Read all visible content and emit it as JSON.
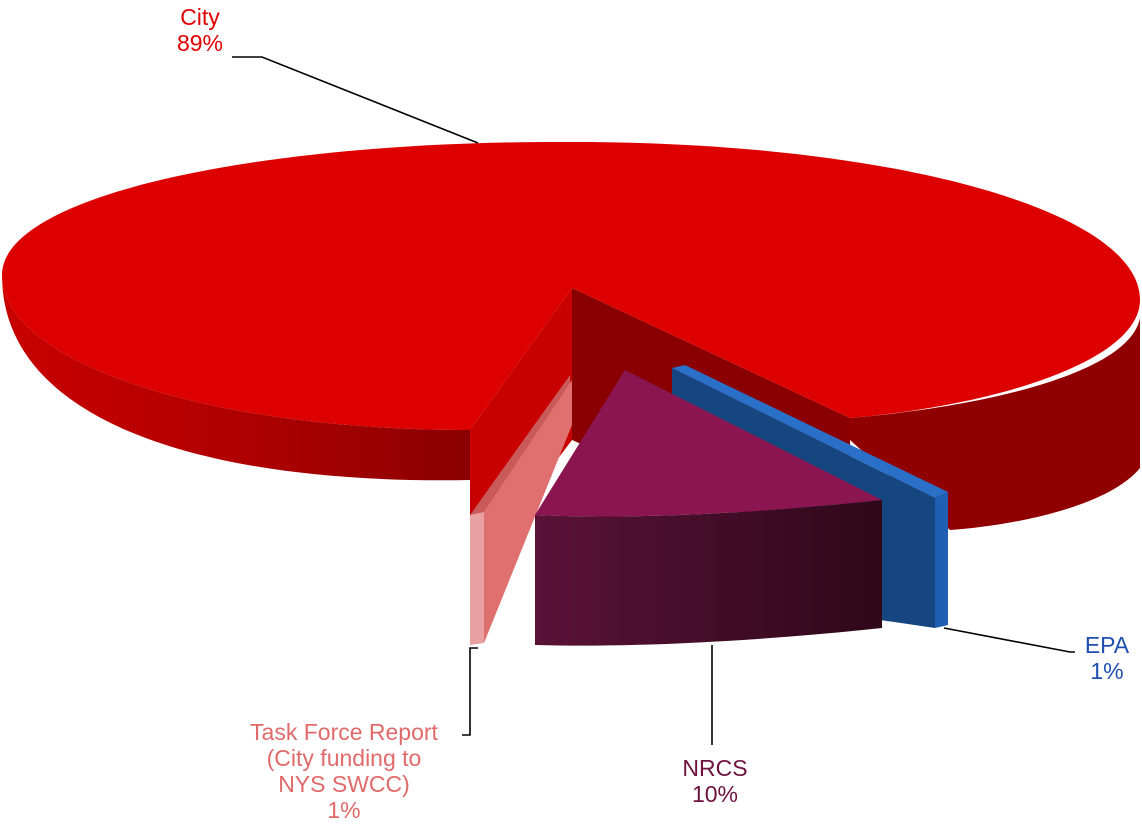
{
  "chart_data": {
    "type": "pie",
    "style": "3d-exploded",
    "slices": [
      {
        "label": "City",
        "value_label": "89%",
        "value": 89,
        "color": "#dd0000"
      },
      {
        "label": "NRCS",
        "value_label": "10%",
        "value": 10,
        "color": "#8a1550"
      },
      {
        "label": "EPA",
        "value_label": "1%",
        "value": 1,
        "color": "#1e5fb4"
      },
      {
        "label_lines": [
          "Task Force Report",
          "(City funding to",
          "NYS SWCC)"
        ],
        "value_label": "1%",
        "value": 1,
        "color": "#e07070"
      }
    ],
    "colors": {
      "city_top": "#dd0000",
      "city_side": "#a50000",
      "city_dark": "#7a0000",
      "nrcs_top": "#8a1550",
      "nrcs_side": "#4a0e2e",
      "epa_top": "#1e5fb4",
      "epa_side": "#16467f",
      "tf_top": "#e07070",
      "tf_side": "#c85a5a",
      "city_text": "#e00000",
      "nrcs_text": "#6e1240",
      "epa_text": "#1e4fb0",
      "tf_text": "#e06a6a"
    }
  }
}
